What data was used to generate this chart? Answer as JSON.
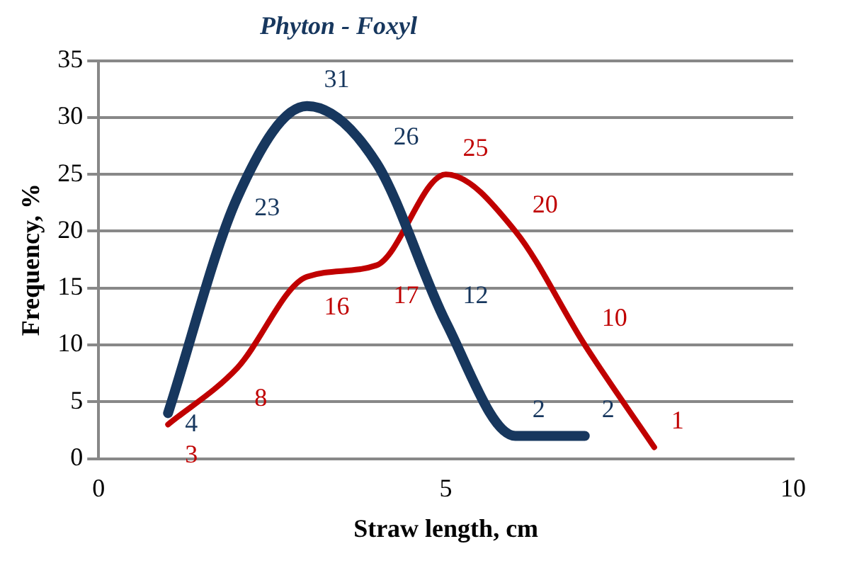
{
  "chart_data": {
    "type": "line",
    "title": "Phyton - Foxyl",
    "xlabel": "Straw length, cm",
    "ylabel": "Frequency, %",
    "xlim": [
      0,
      10
    ],
    "xticks": [
      0,
      5,
      10
    ],
    "ylim": [
      0,
      35
    ],
    "yticks": [
      0,
      5,
      10,
      15,
      20,
      25,
      30,
      35
    ],
    "grid": "y",
    "legend": false,
    "marker": "none",
    "data_labels": true,
    "series": [
      {
        "color": "#17375e",
        "x": [
          1,
          2,
          3,
          4,
          5,
          6,
          7
        ],
        "values": [
          4,
          23,
          31,
          26,
          12,
          2,
          2
        ]
      },
      {
        "color": "#c00000",
        "x": [
          1,
          2,
          3,
          4,
          5,
          6,
          7,
          8
        ],
        "values": [
          3,
          8,
          16,
          17,
          25,
          20,
          10,
          1
        ]
      }
    ]
  }
}
